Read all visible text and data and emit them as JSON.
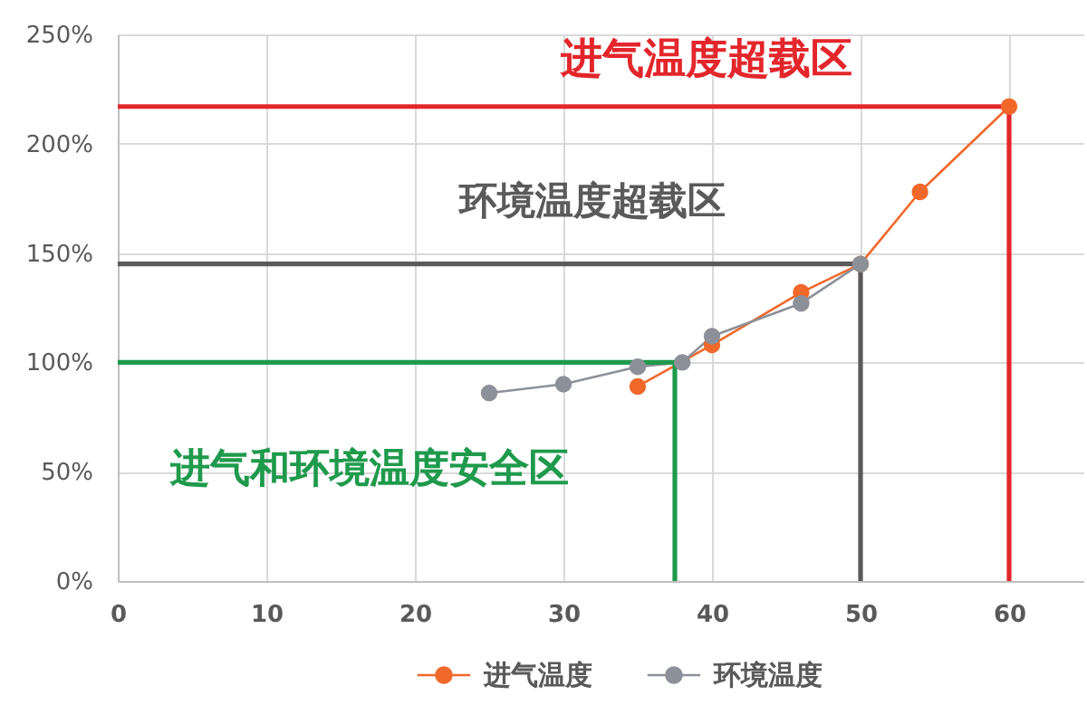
{
  "chart_data": {
    "type": "line",
    "xlim": [
      0,
      65
    ],
    "xticks": [
      0,
      10,
      20,
      30,
      40,
      50,
      60
    ],
    "ylim": [
      0,
      250
    ],
    "yticks": [
      {
        "value": 0,
        "label": "0%"
      },
      {
        "value": 50,
        "label": "50%"
      },
      {
        "value": 100,
        "label": "100%"
      },
      {
        "value": 150,
        "label": "150%"
      },
      {
        "value": 200,
        "label": "200%"
      },
      {
        "value": 250,
        "label": "250%"
      }
    ],
    "grid": true,
    "legend": "bottom",
    "marker": "circle",
    "line_style": "solid",
    "series": [
      {
        "name": "进气温度",
        "color": "#f0682a",
        "x": [
          35,
          40,
          46,
          50,
          54,
          60
        ],
        "values": [
          89,
          108,
          132,
          145,
          178,
          217
        ]
      },
      {
        "name": "环境温度",
        "color": "#8c9099",
        "x": [
          25,
          30,
          35,
          38,
          40,
          46,
          50
        ],
        "values": [
          86,
          90,
          98,
          100,
          112,
          127,
          145
        ]
      },
      {
        "type": "line",
        "color": "#e3262b",
        "marker": "none",
        "x": [
          0,
          60,
          60
        ],
        "values": [
          217,
          217,
          0
        ]
      },
      {
        "type": "line",
        "color": "#5a5a5a",
        "marker": "none",
        "x": [
          0,
          50,
          50
        ],
        "values": [
          145,
          145,
          0
        ]
      },
      {
        "type": "line",
        "color": "#1f9a4c",
        "marker": "none",
        "x": [
          0,
          37.5,
          37.5
        ],
        "values": [
          100,
          100,
          0
        ]
      }
    ],
    "annotations": [
      "进气温度超载区",
      "环境温度超载区",
      "进气和环境温度安全区"
    ]
  }
}
